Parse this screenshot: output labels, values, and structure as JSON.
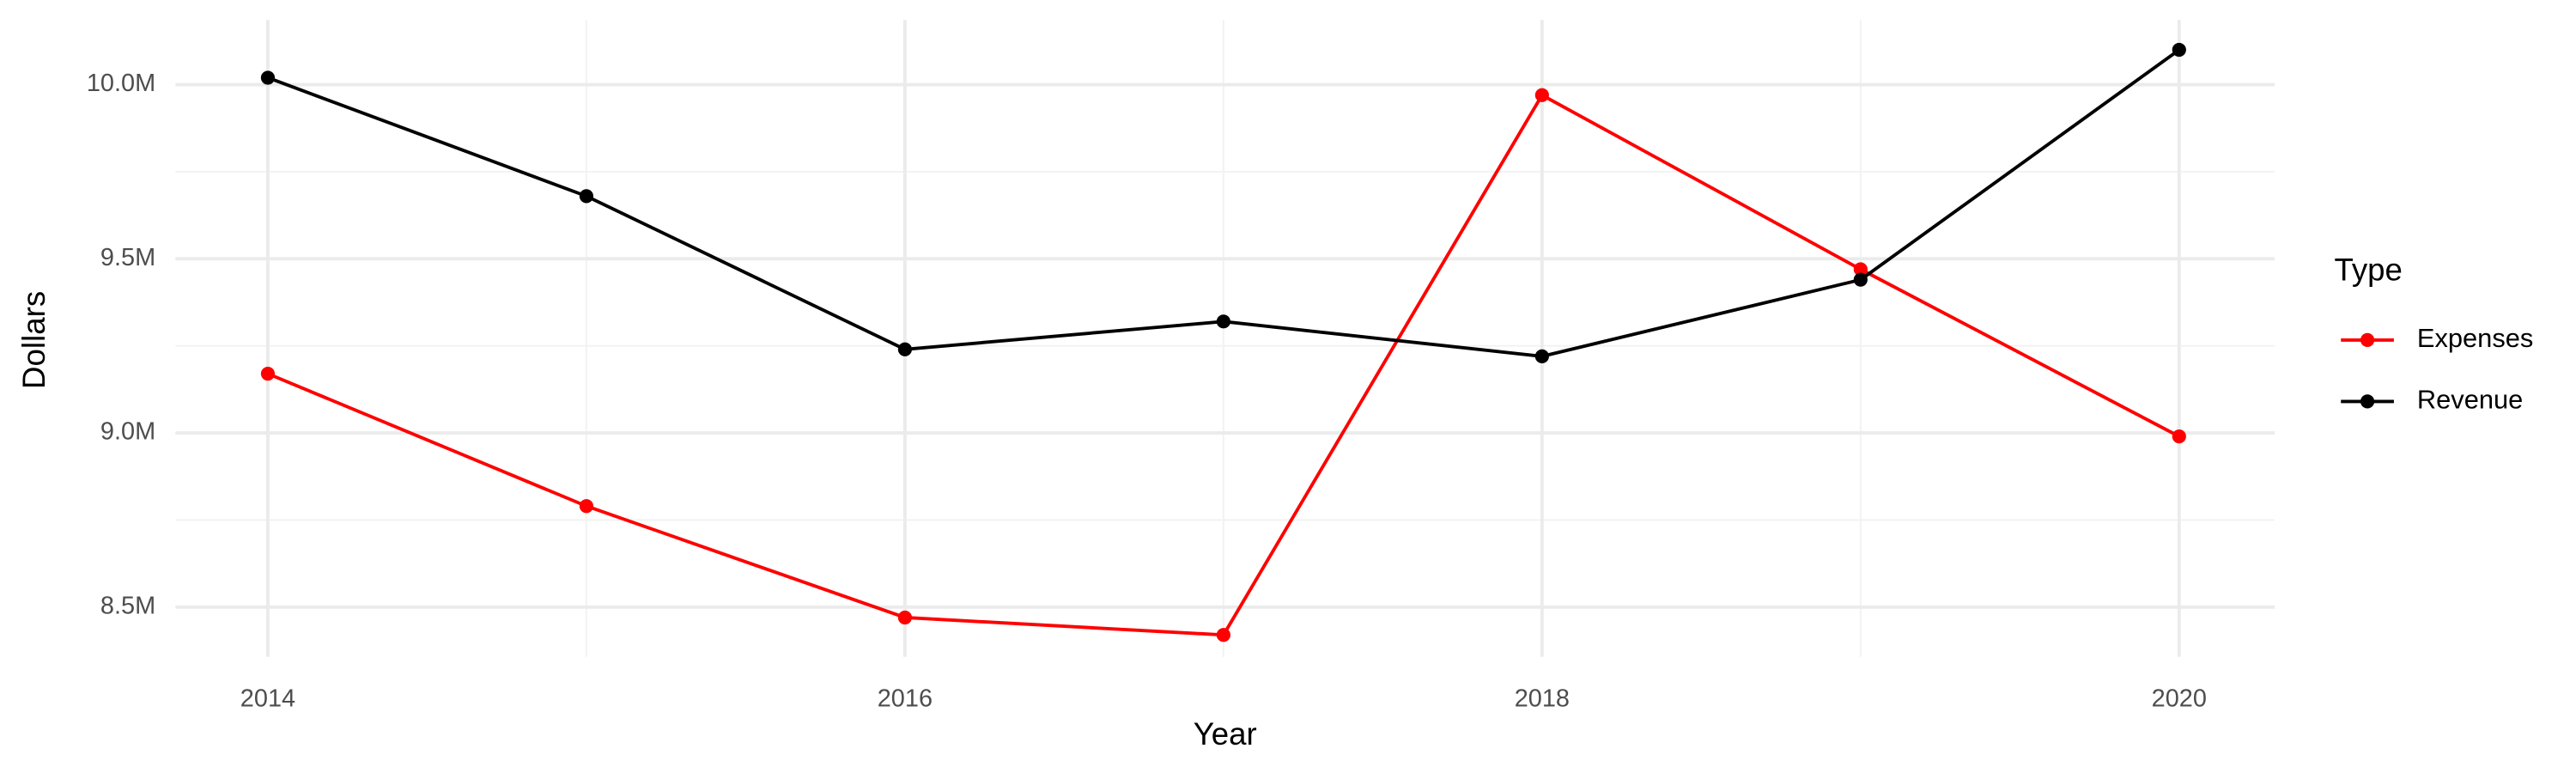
{
  "chart_data": {
    "type": "line",
    "x_label": "Year",
    "y_label": "Dollars",
    "legend_title": "Type",
    "x": [
      2014,
      2015,
      2016,
      2017,
      2018,
      2019,
      2020
    ],
    "series": [
      {
        "name": "Expenses",
        "color": "#ff0000",
        "values": [
          9170000,
          8790000,
          8470000,
          8420000,
          9970000,
          9470000,
          8990000
        ]
      },
      {
        "name": "Revenue",
        "color": "#000000",
        "values": [
          10020000,
          9680000,
          9240000,
          9320000,
          9220000,
          9440000,
          10100000
        ]
      }
    ],
    "xlim": [
      2013.71,
      2020.3
    ],
    "xticks": [
      2014,
      2016,
      2018,
      2020
    ],
    "ylim": [
      8357000,
      10186000
    ],
    "yticks": [
      {
        "value": 8500000,
        "label": "8.5M"
      },
      {
        "value": 9000000,
        "label": "9.0M"
      },
      {
        "value": 9500000,
        "label": "9.5M"
      },
      {
        "value": 10000000,
        "label": "10.0M"
      }
    ],
    "grid": true,
    "legend": "right"
  }
}
